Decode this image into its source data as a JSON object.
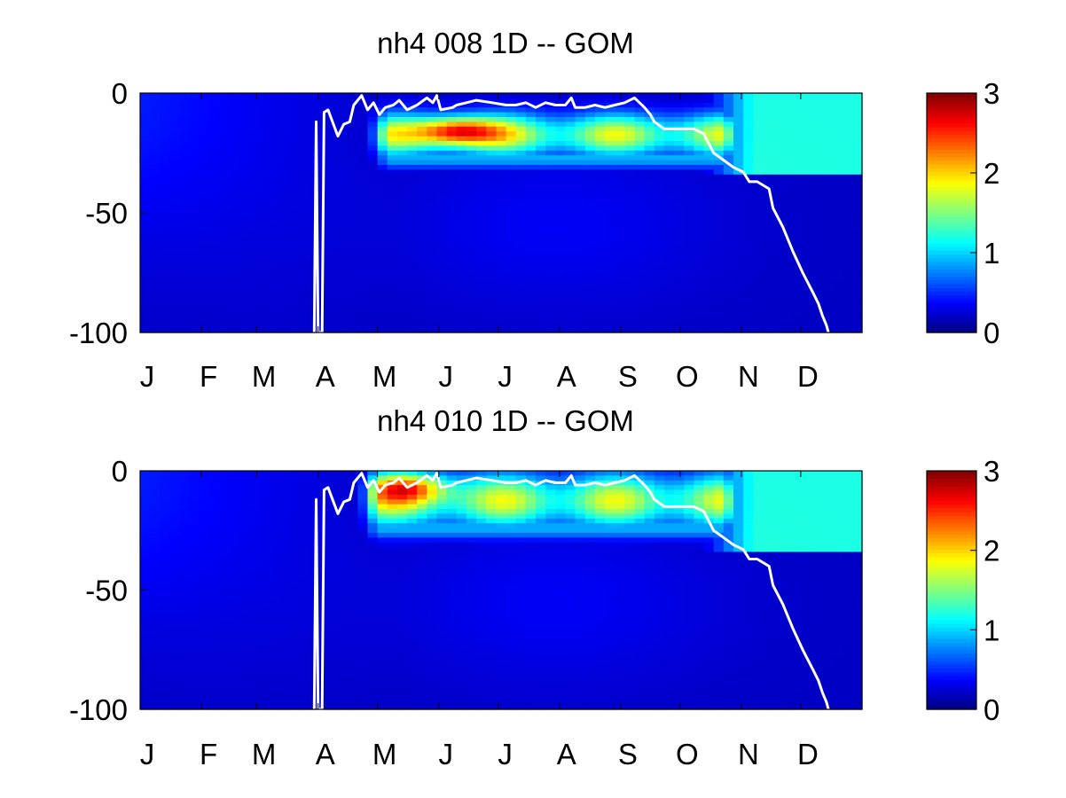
{
  "chart_data": [
    {
      "type": "heatmap",
      "title": "nh4  008 1D   -- GOM",
      "x_tick_labels": [
        "J",
        "F",
        "M",
        "A",
        "M",
        "J",
        "J",
        "A",
        "S",
        "O",
        "N",
        "D"
      ],
      "y_tick_labels": [
        "0",
        "-50",
        "-100"
      ],
      "y_ticks": [
        0,
        -50,
        -100
      ],
      "ylim": [
        -100,
        0
      ],
      "xlim": [
        0,
        365
      ],
      "colorbar": {
        "ticks": [
          0,
          1,
          2,
          3
        ],
        "labels": [
          "0",
          "1",
          "2",
          "3"
        ],
        "range": [
          0,
          3
        ],
        "colormap": "jet"
      },
      "field_summary": {
        "background_deep": 0.2,
        "surface_winter_Jan_Apr": 0.45,
        "surface_late_Nov_Dec": 1.2,
        "subsurface_max_layer_depth": [
          -10,
          -25
        ],
        "subsurface_max_days": [
          120,
          300
        ],
        "peak_value": 2.9,
        "peak_day": 160,
        "peak_depth": -15,
        "bottom_of_upper_layer_after_Nov": -33
      },
      "white_line": {
        "day": [
          88,
          89,
          90,
          92,
          93,
          95,
          100,
          103,
          106,
          108,
          112,
          115,
          118,
          121,
          124,
          128,
          131,
          135,
          140,
          145,
          148,
          150,
          152,
          158,
          160,
          165,
          170,
          178,
          185,
          190,
          195,
          200,
          205,
          210,
          215,
          218,
          220,
          225,
          230,
          235,
          240,
          245,
          250,
          255,
          258,
          260,
          265,
          270,
          275,
          280,
          285,
          290,
          295,
          300,
          305,
          308,
          312,
          318,
          320,
          325,
          330,
          335,
          340,
          343,
          345,
          347,
          348
        ],
        "depth": [
          -100,
          -12,
          -100,
          -100,
          -8,
          -7,
          -18,
          -13,
          -12,
          -5,
          -1,
          -7,
          -4,
          -9,
          -6,
          -5,
          -3,
          -7,
          -5,
          -2,
          -4,
          -1,
          -7,
          -6,
          -5,
          -4,
          -3,
          -4,
          -5,
          -5,
          -4,
          -6,
          -4,
          -5,
          -5,
          -2,
          -6,
          -6,
          -5,
          -6,
          -5,
          -4,
          -2,
          -6,
          -9,
          -12,
          -15,
          -15,
          -15,
          -15,
          -17,
          -25,
          -28,
          -31,
          -33,
          -37,
          -37,
          -40,
          -48,
          -56,
          -66,
          -75,
          -83,
          -88,
          -93,
          -97,
          -100
        ]
      }
    },
    {
      "type": "heatmap",
      "title": "nh4  010 1D   -- GOM",
      "x_tick_labels": [
        "J",
        "F",
        "M",
        "A",
        "M",
        "J",
        "J",
        "A",
        "S",
        "O",
        "N",
        "D"
      ],
      "y_tick_labels": [
        "0",
        "-50",
        "-100"
      ],
      "y_ticks": [
        0,
        -50,
        -100
      ],
      "ylim": [
        -100,
        0
      ],
      "xlim": [
        0,
        365
      ],
      "colorbar": {
        "ticks": [
          0,
          1,
          2,
          3
        ],
        "labels": [
          "0",
          "1",
          "2",
          "3"
        ],
        "range": [
          0,
          3
        ],
        "colormap": "jet"
      },
      "field_summary": {
        "background_deep": 0.2,
        "surface_winter_Jan_Apr": 0.45,
        "surface_late_Nov_Dec": 1.2,
        "subsurface_max_layer_depth": [
          -3,
          -22
        ],
        "subsurface_max_days": [
          115,
          300
        ],
        "peak_value": 3.0,
        "peak_day": 135,
        "peak_depth": -5,
        "bottom_of_upper_layer_after_Nov": -33
      },
      "white_line": {
        "day": [
          88,
          89,
          90,
          92,
          93,
          95,
          100,
          103,
          106,
          108,
          112,
          115,
          118,
          121,
          124,
          128,
          131,
          135,
          140,
          145,
          148,
          150,
          152,
          158,
          160,
          165,
          170,
          178,
          185,
          190,
          195,
          200,
          205,
          210,
          215,
          218,
          220,
          225,
          230,
          235,
          240,
          245,
          250,
          255,
          258,
          260,
          265,
          270,
          275,
          280,
          285,
          290,
          295,
          300,
          305,
          308,
          312,
          318,
          320,
          325,
          330,
          335,
          340,
          343,
          345,
          347,
          348
        ],
        "depth": [
          -100,
          -12,
          -100,
          -100,
          -8,
          -7,
          -18,
          -13,
          -12,
          -5,
          -1,
          -7,
          -4,
          -9,
          -6,
          -5,
          -3,
          -7,
          -5,
          -2,
          -4,
          -1,
          -7,
          -6,
          -5,
          -4,
          -3,
          -4,
          -5,
          -5,
          -4,
          -6,
          -4,
          -5,
          -5,
          -2,
          -6,
          -6,
          -5,
          -6,
          -5,
          -4,
          -2,
          -6,
          -9,
          -12,
          -15,
          -15,
          -15,
          -15,
          -17,
          -25,
          -28,
          -31,
          -33,
          -37,
          -37,
          -40,
          -48,
          -56,
          -66,
          -75,
          -83,
          -88,
          -93,
          -97,
          -100
        ]
      }
    }
  ]
}
